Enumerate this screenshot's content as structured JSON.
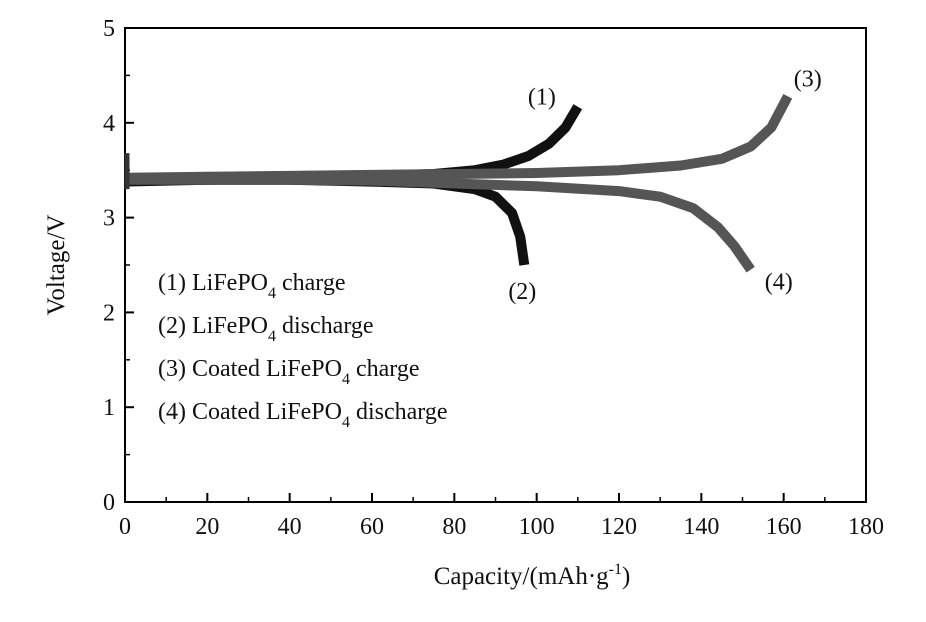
{
  "chart_data": {
    "type": "line",
    "xlabel": "Capacity/(mAh·g",
    "xlabel_sup": "-1",
    "xlabel_end": ")",
    "ylabel": "Voltage/V",
    "xlim": [
      0,
      180
    ],
    "ylim": [
      0,
      5
    ],
    "x_ticks": [
      "0",
      "20",
      "40",
      "60",
      "80",
      "100",
      "120",
      "140",
      "160",
      "180"
    ],
    "y_ticks": [
      "0",
      "1",
      "2",
      "3",
      "4",
      "5"
    ],
    "grid": false,
    "legend_placement": "left-center",
    "colors": {
      "uncoated": "#111111",
      "coated": "#555555"
    },
    "series": [
      {
        "tag": "(1)",
        "legend": {
          "pre": "(1) LiFePO",
          "sub": "4",
          "post": " charge"
        },
        "color": "uncoated",
        "points": [
          [
            0,
            3.38
          ],
          [
            20,
            3.4
          ],
          [
            40,
            3.42
          ],
          [
            60,
            3.44
          ],
          [
            75,
            3.46
          ],
          [
            85,
            3.5
          ],
          [
            92,
            3.56
          ],
          [
            98,
            3.65
          ],
          [
            103,
            3.78
          ],
          [
            107,
            3.95
          ],
          [
            110,
            4.17
          ]
        ]
      },
      {
        "tag": "(2)",
        "legend": {
          "pre": "(2) LiFePO",
          "sub": "4",
          "post": " discharge"
        },
        "color": "uncoated",
        "points": [
          [
            0,
            3.4
          ],
          [
            20,
            3.4
          ],
          [
            40,
            3.4
          ],
          [
            60,
            3.38
          ],
          [
            75,
            3.36
          ],
          [
            85,
            3.3
          ],
          [
            90,
            3.22
          ],
          [
            94,
            3.05
          ],
          [
            96,
            2.8
          ],
          [
            97,
            2.5
          ]
        ]
      },
      {
        "tag": "(3)",
        "legend": {
          "pre": "(3) Coated LiFePO",
          "sub": "4",
          "post": " charge"
        },
        "color": "coated",
        "points": [
          [
            0,
            3.42
          ],
          [
            20,
            3.43
          ],
          [
            40,
            3.44
          ],
          [
            60,
            3.45
          ],
          [
            80,
            3.46
          ],
          [
            100,
            3.47
          ],
          [
            120,
            3.5
          ],
          [
            135,
            3.55
          ],
          [
            145,
            3.62
          ],
          [
            152,
            3.75
          ],
          [
            157,
            3.95
          ],
          [
            161,
            4.28
          ]
        ]
      },
      {
        "tag": "(4)",
        "legend": {
          "pre": "(4) Coated LiFePO",
          "sub": "4",
          "post": " discharge"
        },
        "color": "coated",
        "points": [
          [
            0,
            3.4
          ],
          [
            20,
            3.4
          ],
          [
            40,
            3.4
          ],
          [
            60,
            3.39
          ],
          [
            80,
            3.36
          ],
          [
            100,
            3.33
          ],
          [
            120,
            3.28
          ],
          [
            130,
            3.22
          ],
          [
            138,
            3.1
          ],
          [
            144,
            2.9
          ],
          [
            148,
            2.7
          ],
          [
            152,
            2.45
          ]
        ]
      }
    ]
  }
}
